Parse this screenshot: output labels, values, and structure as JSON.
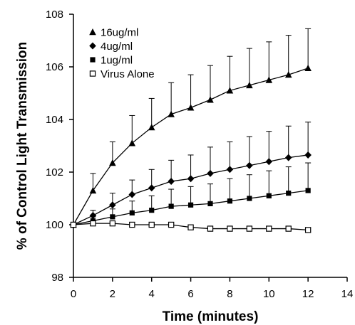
{
  "chart_data": {
    "type": "line",
    "title": "",
    "xlabel": "Time (minutes)",
    "ylabel": "% of Control Light Transmission",
    "xlim": [
      0,
      14
    ],
    "ylim": [
      98,
      108
    ],
    "x_ticks": [
      "0",
      "2",
      "4",
      "6",
      "8",
      "10",
      "12",
      "14"
    ],
    "y_ticks": [
      "98",
      "100",
      "102",
      "104",
      "106",
      "108"
    ],
    "grid": false,
    "legend_position": "top-left",
    "series": [
      {
        "name": "16ug/ml",
        "marker": "filled-triangle",
        "x": [
          0,
          1,
          2,
          3,
          4,
          5,
          6,
          7,
          8,
          9,
          10,
          11,
          12
        ],
        "y": [
          100,
          101.3,
          102.35,
          103.1,
          103.7,
          104.2,
          104.45,
          104.75,
          105.1,
          105.3,
          105.5,
          105.7,
          105.95
        ],
        "err": [
          0,
          0.65,
          0.8,
          1.05,
          1.1,
          1.2,
          1.25,
          1.3,
          1.3,
          1.4,
          1.45,
          1.5,
          1.5
        ]
      },
      {
        "name": "4ug/ml",
        "marker": "filled-diamond",
        "x": [
          0,
          1,
          2,
          3,
          4,
          5,
          6,
          7,
          8,
          9,
          10,
          11,
          12
        ],
        "y": [
          100,
          100.35,
          100.75,
          101.15,
          101.4,
          101.65,
          101.75,
          101.95,
          102.1,
          102.25,
          102.4,
          102.55,
          102.65
        ],
        "err": [
          0,
          0.2,
          0.45,
          0.55,
          0.7,
          0.8,
          0.9,
          1.0,
          1.05,
          1.1,
          1.15,
          1.2,
          1.25
        ]
      },
      {
        "name": "1ug/ml",
        "marker": "filled-square",
        "x": [
          0,
          1,
          2,
          3,
          4,
          5,
          6,
          7,
          8,
          9,
          10,
          11,
          12
        ],
        "y": [
          100,
          100.15,
          100.3,
          100.45,
          100.55,
          100.7,
          100.75,
          100.8,
          100.9,
          101.0,
          101.1,
          101.2,
          101.3
        ],
        "err": [
          0,
          0.15,
          0.3,
          0.45,
          0.55,
          0.65,
          0.7,
          0.75,
          0.85,
          0.9,
          0.95,
          1.0,
          1.05
        ]
      },
      {
        "name": "Virus Alone",
        "marker": "open-square",
        "x": [
          0,
          1,
          2,
          3,
          4,
          5,
          6,
          7,
          8,
          9,
          10,
          11,
          12
        ],
        "y": [
          100,
          100.05,
          100.05,
          100.0,
          100.0,
          100.0,
          99.9,
          99.85,
          99.85,
          99.85,
          99.85,
          99.85,
          99.8
        ],
        "err": [
          0,
          0,
          0,
          0,
          0,
          0,
          0,
          0,
          0,
          0,
          0,
          0,
          0
        ]
      }
    ]
  }
}
